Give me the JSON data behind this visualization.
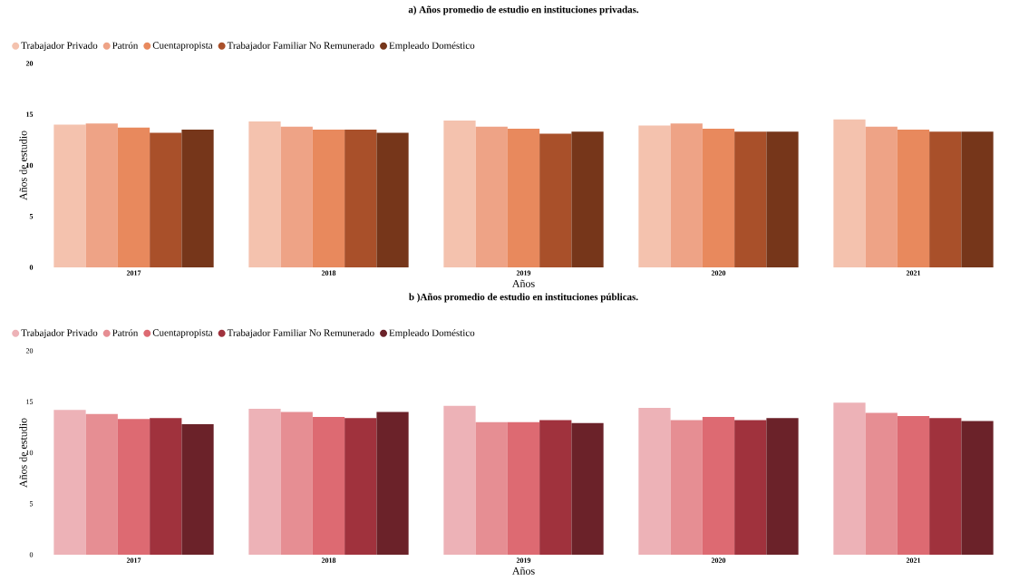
{
  "chart_data": [
    {
      "type": "bar",
      "title": "a) Años promedio de estudio en instituciones privadas.",
      "xlabel": "Años",
      "ylabel": "Años de estudio",
      "categories": [
        "2017",
        "2018",
        "2019",
        "2020",
        "2021"
      ],
      "ylim": [
        0,
        20
      ],
      "yticks": [
        0,
        5,
        10,
        15,
        20
      ],
      "legend": "top left",
      "series": [
        {
          "name": "Trabajador Privado",
          "color": "#f4c2ae",
          "values": [
            14.0,
            14.3,
            14.4,
            13.9,
            14.5
          ]
        },
        {
          "name": "Patrón",
          "color": "#eea386",
          "values": [
            14.1,
            13.8,
            13.8,
            14.1,
            13.8
          ]
        },
        {
          "name": "Cuentapropista",
          "color": "#e8895d",
          "values": [
            13.7,
            13.5,
            13.6,
            13.6,
            13.5
          ]
        },
        {
          "name": "Trabajador Familiar No Remunerado",
          "color": "#a9502a",
          "values": [
            13.2,
            13.5,
            13.1,
            13.3,
            13.3
          ]
        },
        {
          "name": "Empleado Doméstico",
          "color": "#76361a",
          "values": [
            13.5,
            13.2,
            13.3,
            13.3,
            13.3
          ]
        }
      ]
    },
    {
      "type": "bar",
      "title": "b )Años promedio de estudio en instituciones públicas.",
      "xlabel": "Años",
      "ylabel": "Años de estudio",
      "categories": [
        "2017",
        "2018",
        "2019",
        "2020",
        "2021"
      ],
      "ylim": [
        0,
        20
      ],
      "yticks": [
        0,
        5,
        10,
        15,
        20
      ],
      "legend": "top left",
      "series": [
        {
          "name": "Trabajador Privado",
          "color": "#edb2b7",
          "values": [
            14.2,
            14.3,
            14.6,
            14.4,
            14.9
          ]
        },
        {
          "name": "Patrón",
          "color": "#e68e93",
          "values": [
            13.8,
            14.0,
            13.0,
            13.2,
            13.9
          ]
        },
        {
          "name": "Cuentapropista",
          "color": "#dd6a72",
          "values": [
            13.3,
            13.5,
            13.0,
            13.5,
            13.6
          ]
        },
        {
          "name": "Trabajador Familiar No Remunerado",
          "color": "#a0323d",
          "values": [
            13.4,
            13.4,
            13.2,
            13.2,
            13.4
          ]
        },
        {
          "name": "Empleado Doméstico",
          "color": "#6b2229",
          "values": [
            12.8,
            14.0,
            12.9,
            13.4,
            13.1
          ]
        }
      ]
    }
  ]
}
